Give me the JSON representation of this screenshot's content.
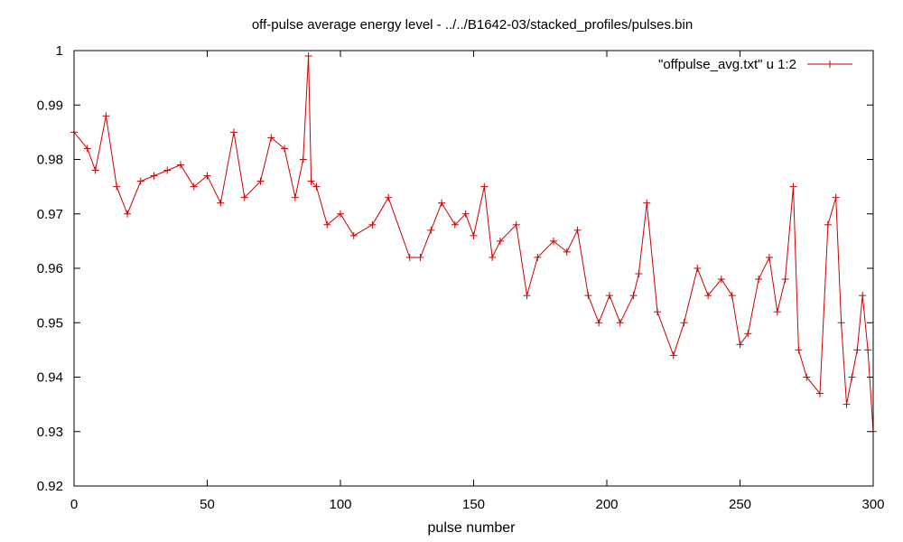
{
  "chart_data": {
    "type": "line",
    "title": "off-pulse average energy level - ../../B1642-03/stacked_profiles/pulses.bin",
    "xlabel": "pulse number",
    "ylabel": "",
    "xlim": [
      0,
      300
    ],
    "ylim": [
      0.92,
      1.0
    ],
    "xticks": [
      "0",
      "50",
      "100",
      "150",
      "200",
      "250",
      "300"
    ],
    "yticks": [
      "0.92",
      "0.93",
      "0.94",
      "0.95",
      "0.96",
      "0.97",
      "0.98",
      "0.99",
      "1"
    ],
    "grid": false,
    "legend_position": "top-right",
    "series": [
      {
        "name": "\"offpulse_avg.txt\" u 1:2",
        "color": "#cc0000",
        "marker": "plus",
        "x": [
          0,
          5,
          8,
          12,
          16,
          20,
          25,
          30,
          35,
          40,
          45,
          50,
          55,
          60,
          64,
          70,
          74,
          79,
          83,
          86,
          88,
          89,
          91,
          95,
          100,
          105,
          112,
          118,
          126,
          130,
          134,
          138,
          143,
          147,
          150,
          154,
          157,
          160,
          166,
          170,
          174,
          180,
          185,
          189,
          193,
          197,
          201,
          205,
          210,
          212,
          215,
          219,
          225,
          229,
          234,
          238,
          243,
          247,
          250,
          253,
          257,
          261,
          264,
          267,
          270,
          272,
          275,
          280,
          283,
          286,
          288,
          290,
          292,
          294,
          296,
          298,
          300
        ],
        "values": [
          0.985,
          0.982,
          0.978,
          0.988,
          0.975,
          0.97,
          0.976,
          0.977,
          0.978,
          0.979,
          0.975,
          0.977,
          0.972,
          0.985,
          0.973,
          0.976,
          0.984,
          0.982,
          0.973,
          0.98,
          0.999,
          0.976,
          0.975,
          0.968,
          0.97,
          0.966,
          0.968,
          0.973,
          0.962,
          0.962,
          0.967,
          0.972,
          0.968,
          0.97,
          0.966,
          0.975,
          0.962,
          0.965,
          0.968,
          0.955,
          0.962,
          0.965,
          0.963,
          0.967,
          0.955,
          0.95,
          0.955,
          0.95,
          0.955,
          0.959,
          0.972,
          0.952,
          0.944,
          0.95,
          0.96,
          0.955,
          0.958,
          0.955,
          0.946,
          0.948,
          0.958,
          0.962,
          0.952,
          0.958,
          0.975,
          0.945,
          0.94,
          0.937,
          0.968,
          0.973,
          0.95,
          0.935,
          0.94,
          0.945,
          0.955,
          0.945,
          0.93
        ]
      }
    ]
  }
}
